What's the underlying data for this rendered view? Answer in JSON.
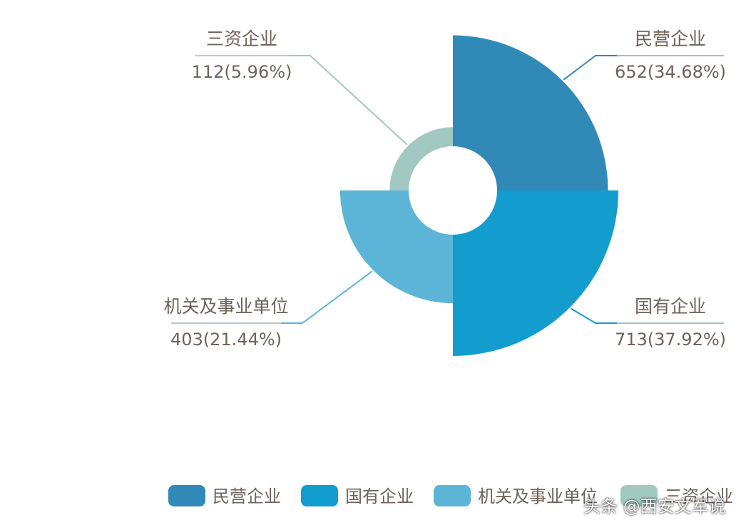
{
  "chart_data": {
    "type": "pie",
    "variant": "rose",
    "slices": [
      {
        "name": "民营企业",
        "value": 652,
        "percent": "34.68%",
        "value_label": "652(34.68%)",
        "color": "#3189b7"
      },
      {
        "name": "国有企业",
        "value": 713,
        "percent": "37.92%",
        "value_label": "713(37.92%)",
        "color": "#139cce"
      },
      {
        "name": "机关及事业单位",
        "value": 403,
        "percent": "21.44%",
        "value_label": "403(21.44%)",
        "color": "#5cb4d7"
      },
      {
        "name": "三资企业",
        "value": 112,
        "percent": "5.96%",
        "value_label": "112(5.96%)",
        "color": "#a2c9c1"
      }
    ],
    "legend": {
      "placement": "bottom",
      "items": [
        "民营企业",
        "国有企业",
        "机关及事业单位",
        "三资企业"
      ]
    }
  },
  "watermark": "头条 @西安文军说"
}
